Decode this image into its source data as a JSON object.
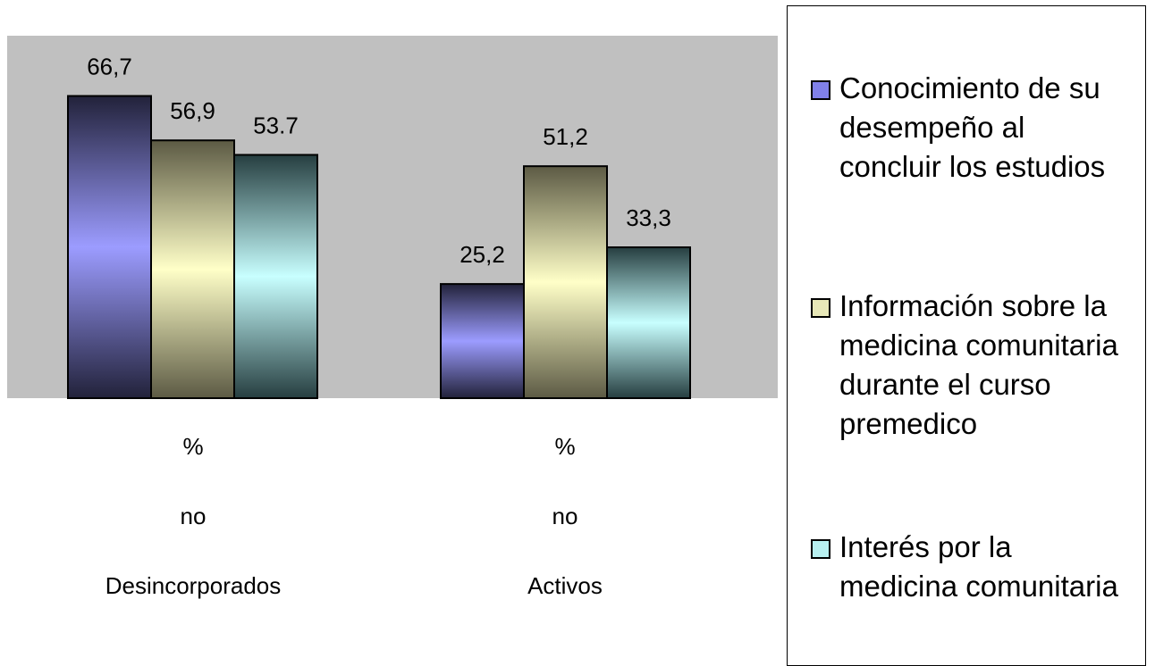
{
  "chart_data": {
    "type": "bar",
    "categories": [
      [
        "%",
        "no",
        "Desincorporados"
      ],
      [
        "%",
        "no",
        "Activos"
      ]
    ],
    "series": [
      {
        "name": "Conocimiento de su\ndesempeño al\nconcluir los estudios",
        "values": [
          66.7,
          25.2
        ],
        "labels": [
          "66,7",
          "25,2"
        ],
        "color_light": "#9c9cff",
        "color_dark": "#22223a"
      },
      {
        "name": "Información sobre la\nmedicina comunitaria\ndurante el curso\npremedico",
        "values": [
          56.9,
          51.2
        ],
        "labels": [
          "56,9",
          "51,2"
        ],
        "color_light": "#ffffc8",
        "color_dark": "#5c5a44"
      },
      {
        "name": "Interés por la\nmedicina comunitaria",
        "values": [
          53.7,
          33.3
        ],
        "labels": [
          "53.7",
          "33,3"
        ],
        "color_light": "#c8ffff",
        "color_dark": "#263e40"
      }
    ],
    "ylim": [
      0,
      80
    ],
    "plot_area_color": "#c0c0c0",
    "grid": false,
    "legend": "right"
  }
}
